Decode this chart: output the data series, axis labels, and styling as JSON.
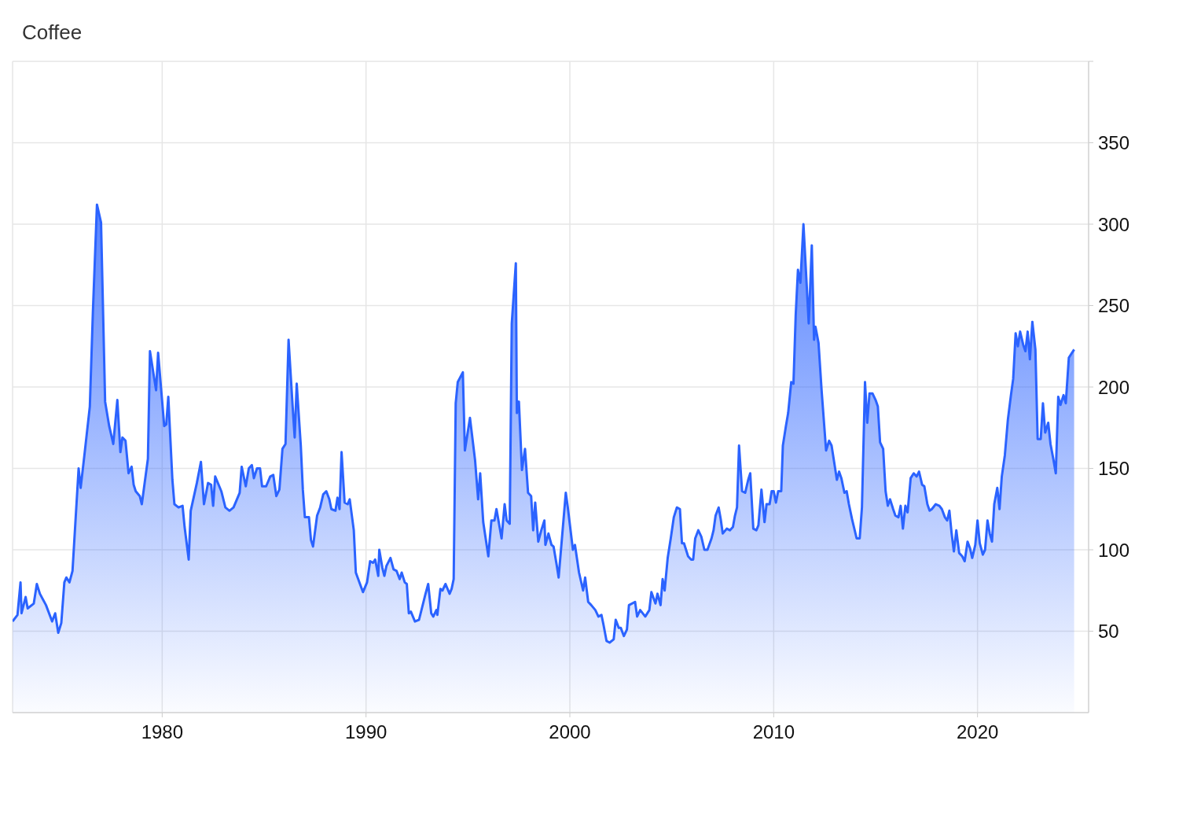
{
  "chart_data": {
    "type": "area",
    "title": "Coffee",
    "x": [
      1972.66,
      1972.9,
      1973.05,
      1973.1,
      1973.3,
      1973.4,
      1973.7,
      1973.85,
      1974.0,
      1974.3,
      1974.6,
      1974.75,
      1974.9,
      1975.05,
      1975.2,
      1975.3,
      1975.45,
      1975.6,
      1975.9,
      1976.0,
      1976.2,
      1976.45,
      1976.6,
      1976.8,
      1977.0,
      1977.2,
      1977.4,
      1977.6,
      1977.8,
      1977.95,
      1978.05,
      1978.2,
      1978.35,
      1978.5,
      1978.6,
      1978.7,
      1978.9,
      1979.0,
      1979.3,
      1979.4,
      1979.7,
      1979.8,
      1980.1,
      1980.2,
      1980.3,
      1980.5,
      1980.6,
      1980.8,
      1981.0,
      1981.1,
      1981.3,
      1981.4,
      1981.7,
      1981.9,
      1982.05,
      1982.25,
      1982.4,
      1982.5,
      1982.6,
      1982.8,
      1982.9,
      1983.1,
      1983.3,
      1983.5,
      1983.8,
      1983.9,
      1984.1,
      1984.25,
      1984.4,
      1984.5,
      1984.65,
      1984.8,
      1984.9,
      1985.1,
      1985.3,
      1985.45,
      1985.6,
      1985.75,
      1985.9,
      1986.05,
      1986.2,
      1986.4,
      1986.5,
      1986.6,
      1986.8,
      1986.9,
      1987.0,
      1987.2,
      1987.3,
      1987.4,
      1987.6,
      1987.75,
      1987.9,
      1988.05,
      1988.2,
      1988.3,
      1988.5,
      1988.6,
      1988.7,
      1988.8,
      1988.95,
      1989.1,
      1989.2,
      1989.4,
      1989.5,
      1989.85,
      1990.05,
      1990.2,
      1990.35,
      1990.45,
      1990.6,
      1990.65,
      1990.8,
      1990.9,
      1991.0,
      1991.2,
      1991.35,
      1991.5,
      1991.65,
      1991.75,
      1991.9,
      1992.0,
      1992.1,
      1992.2,
      1992.4,
      1992.6,
      1992.9,
      1993.05,
      1993.2,
      1993.3,
      1993.45,
      1993.5,
      1993.65,
      1993.75,
      1993.9,
      1994.1,
      1994.2,
      1994.3,
      1994.4,
      1994.5,
      1994.75,
      1994.85,
      1995.1,
      1995.35,
      1995.5,
      1995.6,
      1995.75,
      1996.0,
      1996.15,
      1996.3,
      1996.4,
      1996.65,
      1996.8,
      1996.9,
      1997.05,
      1997.15,
      1997.35,
      1997.4,
      1997.5,
      1997.65,
      1997.8,
      1997.95,
      1998.1,
      1998.2,
      1998.3,
      1998.45,
      1998.6,
      1998.75,
      1998.8,
      1998.95,
      1999.1,
      1999.2,
      1999.35,
      1999.45,
      1999.8,
      1999.9,
      2000.15,
      2000.25,
      2000.45,
      2000.65,
      2000.75,
      2000.9,
      2001.05,
      2001.25,
      2001.4,
      2001.55,
      2001.65,
      2001.8,
      2001.95,
      2002.15,
      2002.25,
      2002.4,
      2002.5,
      2002.65,
      2002.8,
      2002.9,
      2003.2,
      2003.3,
      2003.45,
      2003.7,
      2003.9,
      2004.0,
      2004.2,
      2004.3,
      2004.45,
      2004.55,
      2004.65,
      2004.8,
      2004.95,
      2005.1,
      2005.25,
      2005.4,
      2005.5,
      2005.6,
      2005.8,
      2005.95,
      2006.05,
      2006.15,
      2006.3,
      2006.45,
      2006.6,
      2006.75,
      2006.95,
      2007.05,
      2007.15,
      2007.3,
      2007.4,
      2007.5,
      2007.7,
      2007.85,
      2008.0,
      2008.1,
      2008.2,
      2008.3,
      2008.45,
      2008.6,
      2008.75,
      2008.85,
      2009.0,
      2009.15,
      2009.25,
      2009.4,
      2009.55,
      2009.65,
      2009.8,
      2009.9,
      2010.0,
      2010.11,
      2010.22,
      2010.37,
      2010.45,
      2010.6,
      2010.71,
      2010.86,
      2010.97,
      2011.08,
      2011.19,
      2011.31,
      2011.46,
      2011.72,
      2011.87,
      2011.98,
      2012.05,
      2012.2,
      2012.35,
      2012.57,
      2012.72,
      2012.84,
      2012.99,
      2013.1,
      2013.21,
      2013.32,
      2013.47,
      2013.58,
      2013.69,
      2013.84,
      2014.07,
      2014.22,
      2014.33,
      2014.48,
      2014.59,
      2014.7,
      2014.85,
      2015.0,
      2015.11,
      2015.22,
      2015.37,
      2015.49,
      2015.6,
      2015.71,
      2015.86,
      2015.97,
      2016.12,
      2016.23,
      2016.34,
      2016.46,
      2016.57,
      2016.72,
      2016.87,
      2017.01,
      2017.13,
      2017.28,
      2017.39,
      2017.54,
      2017.65,
      2017.76,
      2017.95,
      2018.13,
      2018.25,
      2018.4,
      2018.51,
      2018.62,
      2018.73,
      2018.84,
      2018.96,
      2019.1,
      2019.25,
      2019.37,
      2019.51,
      2019.63,
      2019.74,
      2019.89,
      2020.0,
      2020.11,
      2020.26,
      2020.37,
      2020.49,
      2020.6,
      2020.71,
      2020.82,
      2020.97,
      2021.08,
      2021.19,
      2021.34,
      2021.49,
      2021.64,
      2021.75,
      2021.87,
      2021.98,
      2022.09,
      2022.24,
      2022.35,
      2022.46,
      2022.57,
      2022.69,
      2022.84,
      2022.95,
      2023.1,
      2023.21,
      2023.32,
      2023.47,
      2023.58,
      2023.73,
      2023.84,
      2023.96,
      2024.07,
      2024.22,
      2024.33,
      2024.48,
      2024.74
    ],
    "series": [
      {
        "color": "#2b63ff",
        "values": [
          56,
          60,
          80,
          61,
          71,
          64,
          67,
          79,
          73,
          66,
          56,
          61,
          49,
          55,
          80,
          83,
          80,
          87,
          150,
          138,
          160,
          188,
          246,
          312,
          301,
          191,
          176,
          165,
          192,
          160,
          169,
          167,
          147,
          151,
          140,
          136,
          133,
          128,
          156,
          222,
          198,
          221,
          176,
          177,
          194,
          143,
          128,
          126,
          127,
          114,
          94,
          124,
          141,
          154,
          128,
          141,
          140,
          127,
          145,
          139,
          136,
          126,
          124,
          126,
          135,
          151,
          139,
          150,
          152,
          144,
          150,
          150,
          139,
          139,
          145,
          146,
          133,
          137,
          162,
          165,
          229,
          188,
          169,
          202,
          164,
          137,
          120,
          120,
          106,
          102,
          121,
          126,
          134,
          136,
          131,
          125,
          124,
          132,
          125,
          160,
          129,
          128,
          131,
          112,
          86,
          74,
          80,
          93,
          92,
          94,
          84,
          100,
          89,
          84,
          90,
          95,
          88,
          87,
          82,
          86,
          80,
          79,
          61,
          62,
          56,
          57,
          72,
          79,
          61,
          59,
          63,
          60,
          76,
          75,
          79,
          73,
          76,
          82,
          190,
          203,
          209,
          161,
          181,
          155,
          131,
          147,
          117,
          96,
          118,
          118,
          125,
          107,
          128,
          118,
          116,
          239,
          276,
          184,
          191,
          149,
          162,
          135,
          133,
          112,
          129,
          105,
          112,
          118,
          103,
          110,
          103,
          102,
          91,
          83,
          135,
          126,
          100,
          103,
          86,
          75,
          83,
          68,
          66,
          63,
          59,
          60,
          54,
          44,
          43,
          45,
          57,
          52,
          52,
          47,
          51,
          66,
          68,
          59,
          63,
          59,
          63,
          74,
          67,
          73,
          66,
          82,
          75,
          95,
          107,
          120,
          126,
          125,
          104,
          104,
          96,
          94,
          94,
          107,
          112,
          108,
          100,
          100,
          107,
          112,
          121,
          126,
          119,
          110,
          113,
          112,
          114,
          121,
          126,
          164,
          136,
          135,
          143,
          147,
          113,
          112,
          115,
          137,
          117,
          128,
          128,
          136,
          136,
          129,
          136,
          136,
          164,
          176,
          184,
          203,
          202,
          244,
          272,
          264,
          300,
          239,
          287,
          229,
          237,
          227,
          198,
          161,
          167,
          164,
          152,
          143,
          148,
          144,
          135,
          136,
          128,
          119,
          107,
          107,
          126,
          203,
          178,
          196,
          196,
          192,
          188,
          166,
          162,
          136,
          127,
          131,
          125,
          121,
          120,
          127,
          113,
          127,
          123,
          144,
          147,
          145,
          148,
          140,
          139,
          128,
          124,
          125,
          128,
          127,
          125,
          120,
          118,
          124,
          110,
          99,
          112,
          98,
          96,
          93,
          105,
          101,
          95,
          103,
          118,
          104,
          97,
          100,
          118,
          110,
          105,
          128,
          138,
          125,
          145,
          158,
          180,
          195,
          205,
          233,
          225,
          234,
          226,
          222,
          234,
          217,
          240,
          223,
          168,
          168,
          190,
          172,
          178,
          165,
          155,
          147,
          194,
          189,
          195,
          190,
          218,
          223
        ]
      }
    ],
    "xlim": [
      1972.66,
      2025.45
    ],
    "xticks": [
      1980,
      1990,
      2000,
      2010,
      2020
    ],
    "ylim": [
      0,
      400
    ],
    "yticks": [
      50,
      100,
      150,
      200,
      250,
      300,
      350,
      {
        "value": 400,
        "label": null
      }
    ],
    "grid": true
  }
}
